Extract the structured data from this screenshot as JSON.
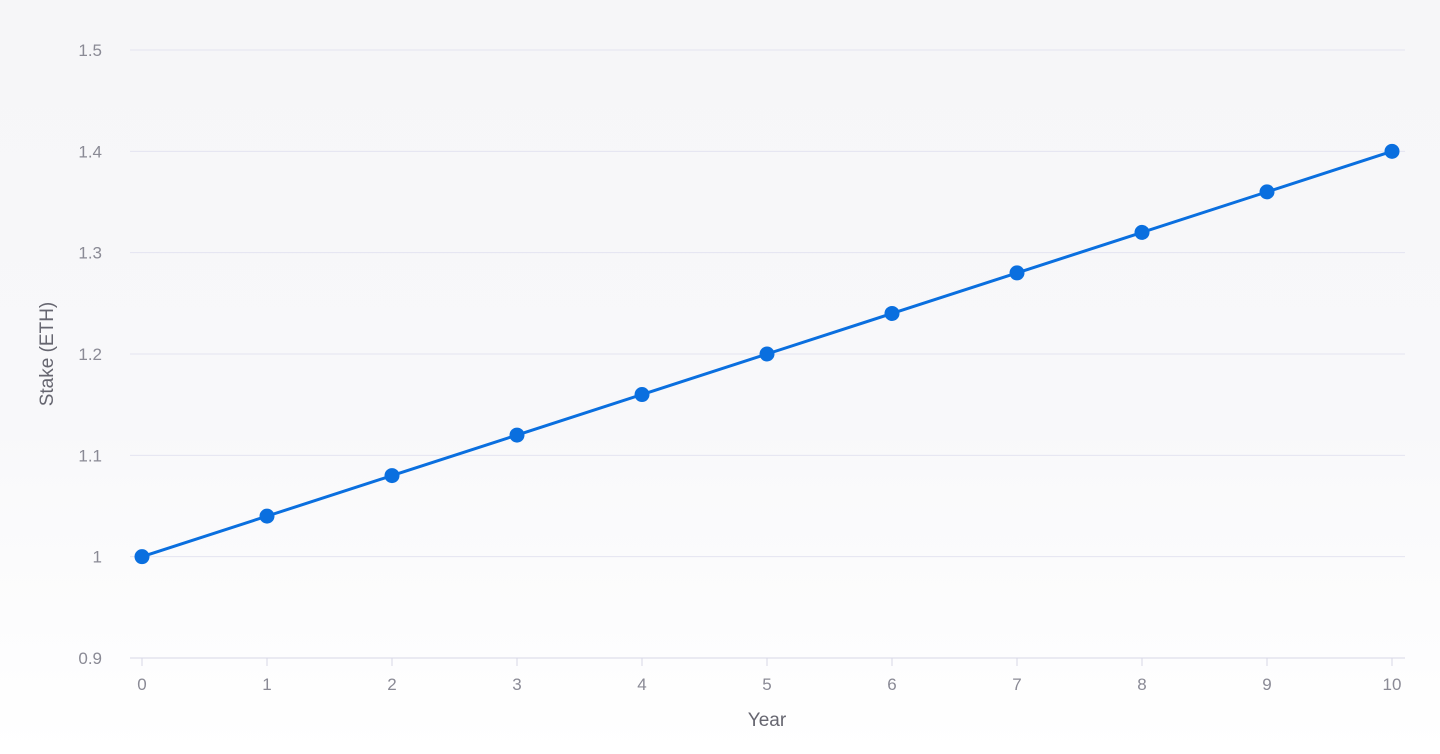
{
  "chart_data": {
    "type": "line",
    "title": "",
    "xlabel": "Year",
    "ylabel": "Stake (ETH)",
    "xlim": [
      0,
      10
    ],
    "ylim": [
      0.9,
      1.5
    ],
    "x_ticks": [
      "0",
      "1",
      "2",
      "3",
      "4",
      "5",
      "6",
      "7",
      "8",
      "9",
      "10"
    ],
    "y_ticks": [
      "0.9",
      "1",
      "1.1",
      "1.2",
      "1.3",
      "1.4",
      "1.5"
    ],
    "grid": true,
    "legend": "none",
    "series": [
      {
        "color": "#0a6fdf",
        "x": [
          0,
          1,
          2,
          3,
          4,
          5,
          6,
          7,
          8,
          9,
          10
        ],
        "y": [
          1.0,
          1.04,
          1.08,
          1.12,
          1.16,
          1.2,
          1.24,
          1.28,
          1.32,
          1.36,
          1.4
        ]
      }
    ]
  },
  "colors": {
    "series_line": "#0a6fdf",
    "gridline": "#e4e4f0",
    "tick_text": "#8a8a95",
    "axis_title_text": "#666670"
  }
}
